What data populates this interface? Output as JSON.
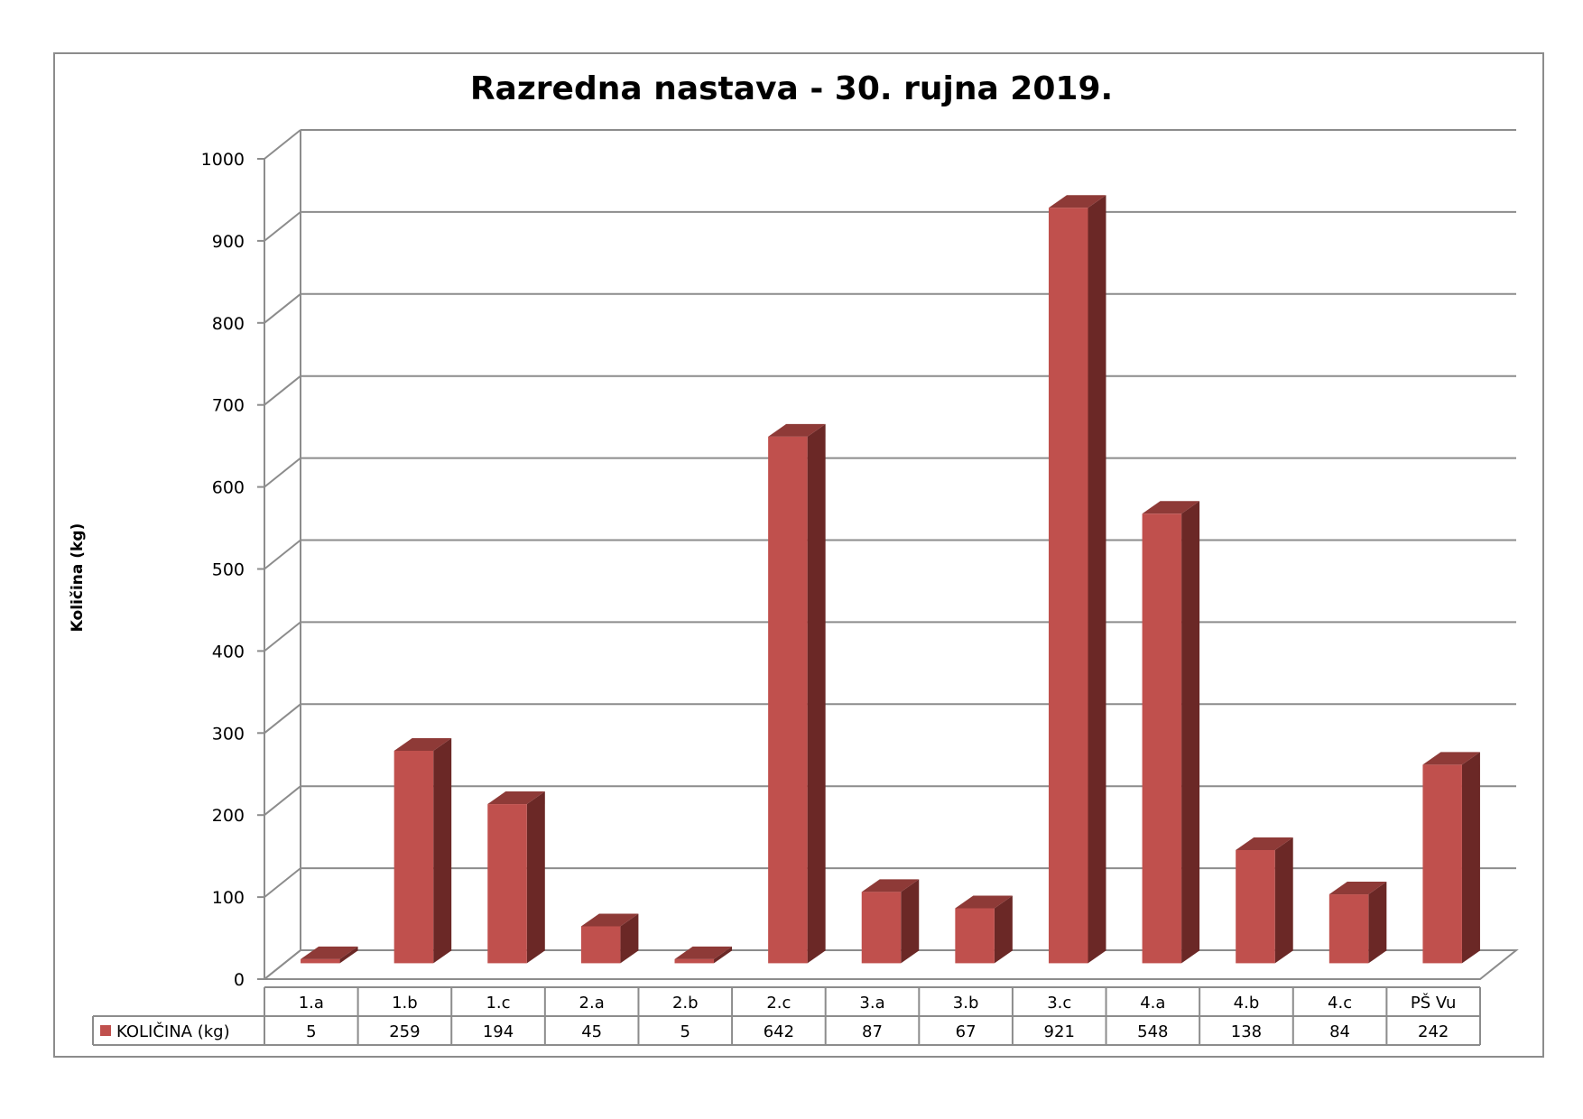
{
  "chart_data": {
    "type": "bar",
    "title": "Razredna nastava - 30. rujna 2019.",
    "ylabel": "Količina (kg)",
    "xlabel": "",
    "ylim": [
      0,
      1000
    ],
    "yticks": [
      0,
      100,
      200,
      300,
      400,
      500,
      600,
      700,
      800,
      900,
      1000
    ],
    "grid": true,
    "legend_placement": "data-table",
    "categories": [
      "1.a",
      "1.b",
      "1.c",
      "2.a",
      "2.b",
      "2.c",
      "3.a",
      "3.b",
      "3.c",
      "4.a",
      "4.b",
      "4.c",
      "PŠ Vu"
    ],
    "series": [
      {
        "name": "KOLIČINA (kg)",
        "color": "#c0504d",
        "values": [
          5,
          259,
          194,
          45,
          5,
          642,
          87,
          67,
          921,
          548,
          138,
          84,
          242
        ]
      }
    ]
  }
}
